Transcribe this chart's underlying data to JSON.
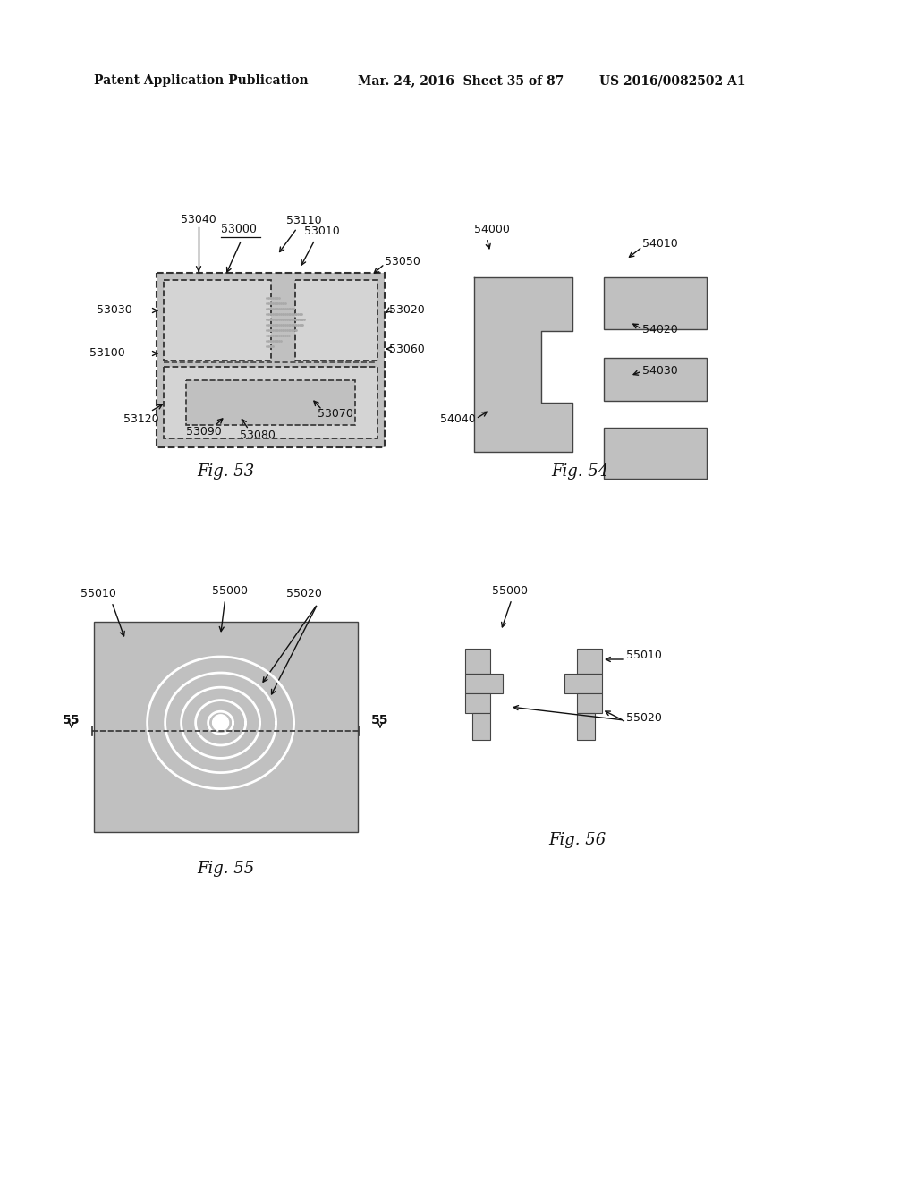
{
  "bg_color": "#ffffff",
  "header_left": "Patent Application Publication",
  "header_mid": "Mar. 24, 2016  Sheet 35 of 87",
  "header_right": "US 2016/0082502 A1",
  "gray_fill": "#c0c0c0",
  "light_gray": "#d4d4d4",
  "stipple_color": "#d8d8d8",
  "fig53_caption": "Fig. 53",
  "fig54_caption": "Fig. 54",
  "fig55_caption": "Fig. 55",
  "fig56_caption": "Fig. 56",
  "label_fontsize": 9,
  "caption_fontsize": 13
}
